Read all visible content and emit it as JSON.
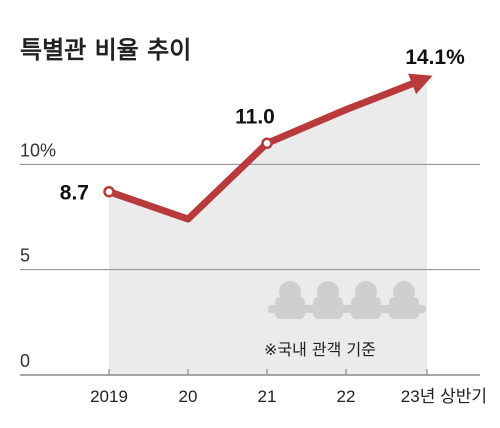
{
  "chart_data": {
    "type": "line",
    "title": "특별관 비율 추이",
    "categories": [
      "2019",
      "20",
      "21",
      "22",
      "23년 상반기"
    ],
    "values": [
      8.7,
      7.4,
      11.0,
      12.6,
      14.1
    ],
    "data_labels": [
      "8.7",
      "",
      "11.0",
      "",
      "14.1%"
    ],
    "y_ticks": [
      {
        "value": 0,
        "label": "0"
      },
      {
        "value": 5,
        "label": "5"
      },
      {
        "value": 10,
        "label": "10%"
      }
    ],
    "ylim": [
      0,
      14.1
    ],
    "grid": true,
    "annotation": "※국내 관객 기준",
    "colors": {
      "line": "#b83a3c",
      "area": "#ebebeb",
      "grid": "#8a8a8a",
      "seat_icon": "#cfcfcf",
      "text": "#222222"
    }
  },
  "icons": [
    "theater-seat-icon",
    "theater-seat-icon",
    "theater-seat-icon",
    "theater-seat-icon"
  ]
}
